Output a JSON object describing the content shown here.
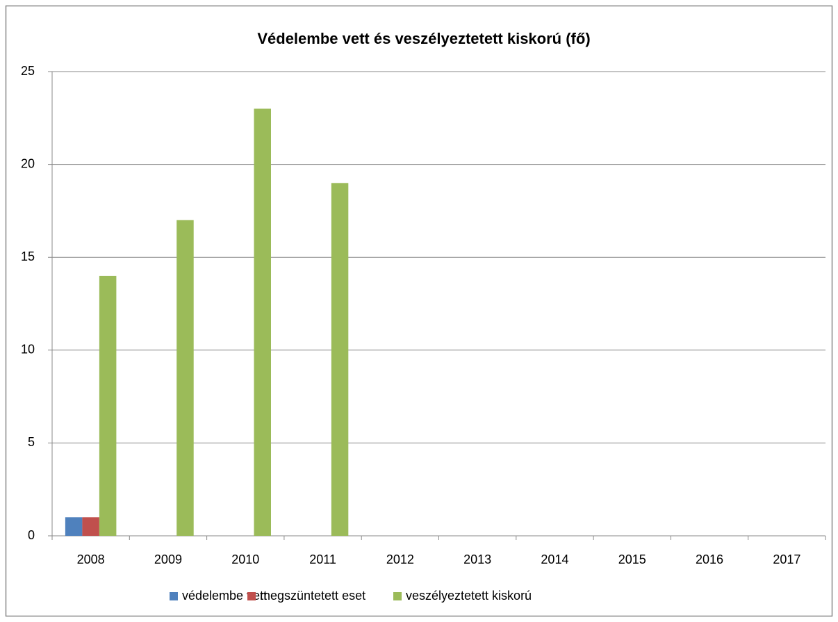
{
  "chart_data": {
    "type": "bar",
    "title": "Védelembe vett és veszélyeztetett kiskorú (fő)",
    "categories": [
      "2008",
      "2009",
      "2010",
      "2011",
      "2012",
      "2013",
      "2014",
      "2015",
      "2016",
      "2017"
    ],
    "series": [
      {
        "name": "védelembe vett",
        "color": "#4f81bd",
        "values": [
          1,
          0,
          0,
          0,
          null,
          null,
          null,
          null,
          null,
          null
        ]
      },
      {
        "name": "megszüntetett eset",
        "color": "#c0504d",
        "values": [
          1,
          0,
          0,
          0,
          null,
          null,
          null,
          null,
          null,
          null
        ]
      },
      {
        "name": "veszélyeztetett kiskorú",
        "color": "#9bbb59",
        "values": [
          14,
          17,
          23,
          19,
          null,
          null,
          null,
          null,
          null,
          null
        ]
      }
    ],
    "ylim": [
      0,
      25
    ],
    "yticks": [
      0,
      5,
      10,
      15,
      20,
      25
    ],
    "grid": true,
    "legend": "bottom"
  }
}
